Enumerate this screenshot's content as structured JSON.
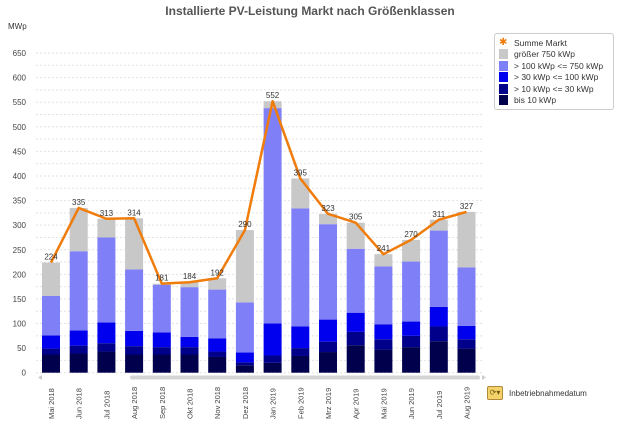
{
  "chart_data": {
    "type": "bar",
    "stacked": true,
    "title": "Installierte PV-Leistung Markt nach Größenklassen",
    "ylabel": "MWp",
    "xlabel": "Inbetriebnahmedatum",
    "ylim": [
      0,
      650
    ],
    "yticks": [
      0,
      50,
      100,
      150,
      200,
      250,
      300,
      350,
      400,
      450,
      500,
      550,
      600,
      650
    ],
    "grid": true,
    "legend_position": "right",
    "categories": [
      "Mai 2018",
      "Jun 2018",
      "Jul 2018",
      "Aug 2018",
      "Sep 2018",
      "Okt 2018",
      "Nov 2018",
      "Dez 2018",
      "Jan 2019",
      "Feb 2019",
      "Mrz 2019",
      "Apr 2019",
      "Mai 2019",
      "Jun 2019",
      "Jul 2019",
      "Aug 2019"
    ],
    "series": [
      {
        "name": "bis 10 kWp",
        "color": "#00004d",
        "values": [
          37,
          39,
          43,
          37,
          37,
          37,
          32,
          15,
          20,
          34,
          42,
          56,
          47,
          52,
          64,
          49
        ]
      },
      {
        "name": "> 10 kWp <= 30 kWp",
        "color": "#00008b",
        "values": [
          12,
          16,
          17,
          17,
          15,
          15,
          11,
          6,
          15,
          16,
          21,
          27,
          21,
          23,
          30,
          19
        ]
      },
      {
        "name": "> 30 kWp <= 100 kWp",
        "color": "#0000ee",
        "values": [
          27,
          31,
          42,
          31,
          30,
          21,
          27,
          20,
          65,
          44,
          45,
          39,
          30,
          29,
          40,
          27
        ]
      },
      {
        "name": "> 100 kWp <= 750 kWp",
        "color": "#7f7ff7",
        "values": [
          80,
          161,
          173,
          125,
          97,
          101,
          99,
          102,
          438,
          240,
          194,
          130,
          118,
          122,
          155,
          119
        ]
      },
      {
        "name": "größer 750 kWp",
        "color": "#c8c8c8",
        "values": [
          68,
          88,
          38,
          104,
          2,
          10,
          23,
          147,
          14,
          61,
          21,
          53,
          25,
          44,
          22,
          113
        ]
      }
    ],
    "line": {
      "name": "Summe Markt",
      "color": "#f07c0c",
      "values": [
        224,
        335,
        313,
        314,
        181,
        184,
        192,
        290,
        552,
        395,
        323,
        305,
        241,
        270,
        311,
        327
      ]
    }
  }
}
